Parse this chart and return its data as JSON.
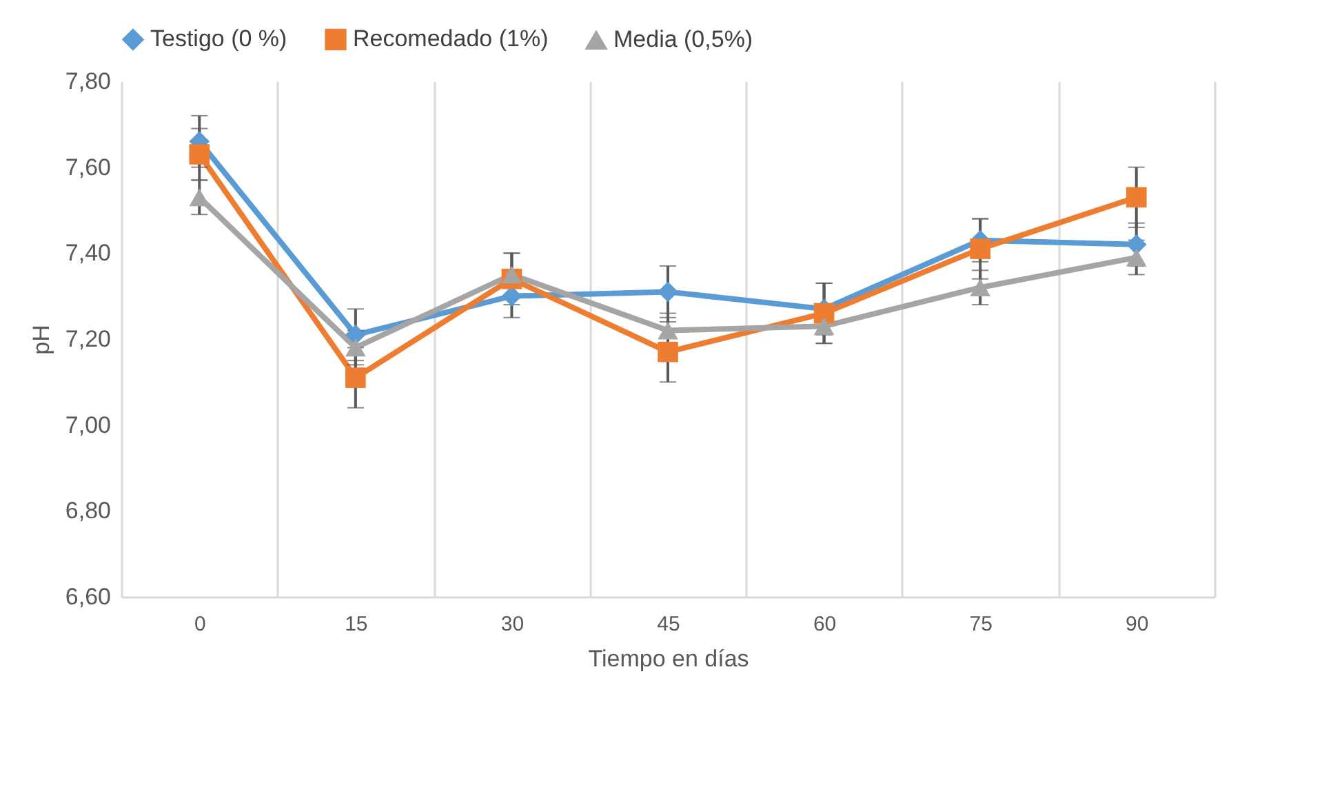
{
  "chart_data": {
    "type": "line",
    "xlabel": "Tiempo en días",
    "ylabel": "pH",
    "categories": [
      "0",
      "15",
      "30",
      "45",
      "60",
      "75",
      "90"
    ],
    "series": [
      {
        "name": "Testigo (0 %)",
        "color": "#5b9bd5",
        "marker": "diamond",
        "values": [
          7.66,
          7.21,
          7.3,
          7.31,
          7.27,
          7.43,
          7.42
        ],
        "errors": [
          0.06,
          0.06,
          0.05,
          0.06,
          0.06,
          0.05,
          0.05
        ]
      },
      {
        "name": "Recomedado (1%)",
        "color": "#ed7d31",
        "marker": "square",
        "values": [
          7.63,
          7.11,
          7.34,
          7.17,
          7.26,
          7.41,
          7.53
        ],
        "errors": [
          0.06,
          0.07,
          0.06,
          0.07,
          0.07,
          0.07,
          0.07
        ]
      },
      {
        "name": "Media (0,5%)",
        "color": "#a5a5a5",
        "marker": "triangle",
        "values": [
          7.53,
          7.18,
          7.35,
          7.22,
          7.23,
          7.32,
          7.39
        ],
        "errors": [
          0.04,
          0.04,
          0.05,
          0.04,
          0.04,
          0.04,
          0.04
        ]
      }
    ],
    "ylim": [
      6.6,
      7.8
    ],
    "yticks": [
      {
        "value": 6.6,
        "label": "6,60"
      },
      {
        "value": 6.8,
        "label": "6,80"
      },
      {
        "value": 7.0,
        "label": "7,00"
      },
      {
        "value": 7.2,
        "label": "7,20"
      },
      {
        "value": 7.4,
        "label": "7,40"
      },
      {
        "value": 7.6,
        "label": "7,60"
      },
      {
        "value": 7.8,
        "label": "7,80"
      }
    ],
    "grid": "x",
    "legend": "top",
    "line_style": "solid"
  }
}
